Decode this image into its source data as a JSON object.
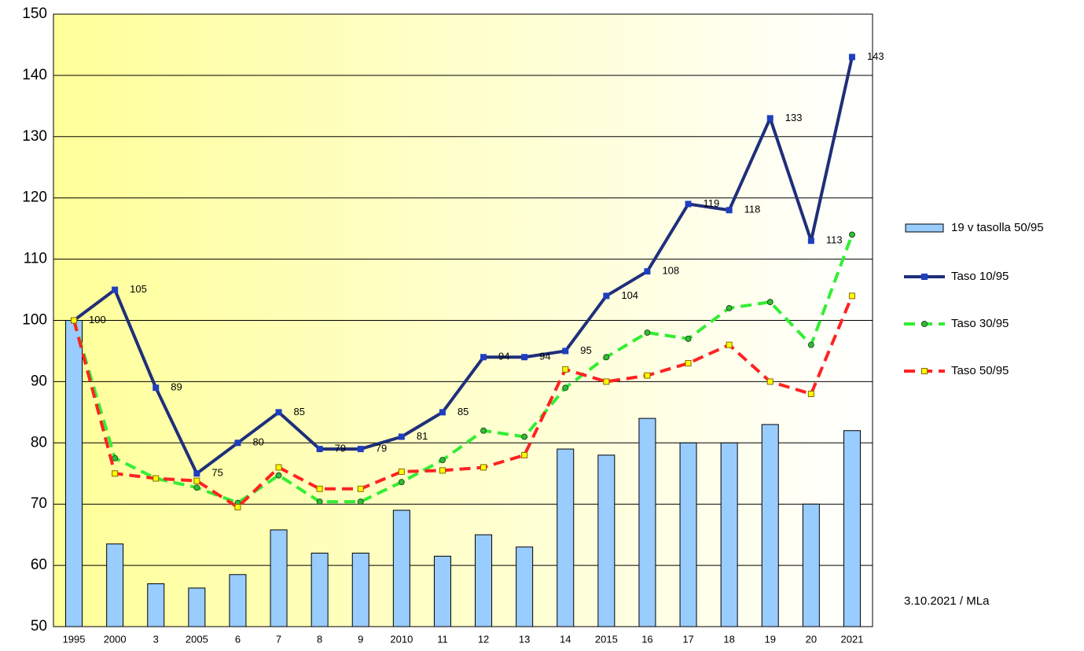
{
  "chart_data": {
    "type": "combo",
    "categories": [
      "1995",
      "2000",
      "3",
      "2005",
      "6",
      "7",
      "8",
      "9",
      "2010",
      "11",
      "12",
      "13",
      "14",
      "2015",
      "16",
      "17",
      "18",
      "19",
      "20",
      "2021"
    ],
    "series": [
      {
        "name": "19 v tasolla 50/95",
        "type": "bar",
        "color": "#99ccff",
        "values": [
          100,
          63.5,
          57,
          56.3,
          58.5,
          65.8,
          62,
          62,
          69,
          61.5,
          65,
          63,
          79,
          78,
          84,
          80,
          80,
          83,
          70,
          82
        ]
      },
      {
        "name": "Taso 10/95",
        "type": "line",
        "color": "#1f2f7a",
        "marker_color": "#1f3fbf",
        "marker": "square",
        "dashed": false,
        "show_labels": true,
        "values": [
          100,
          105,
          89,
          75,
          80,
          85,
          79,
          79,
          81,
          85,
          94,
          94,
          95,
          104,
          108,
          119,
          118,
          133,
          113,
          143
        ]
      },
      {
        "name": "Taso 30/95",
        "type": "line",
        "color": "#33ee33",
        "marker_color": "#33bb33",
        "marker": "circle",
        "dashed": true,
        "values": [
          100,
          77.5,
          74.2,
          72.7,
          70.2,
          74.7,
          70.4,
          70.4,
          73.6,
          77.2,
          82,
          81,
          89,
          94,
          98,
          97,
          102,
          103,
          96,
          114
        ]
      },
      {
        "name": "Taso 50/95",
        "type": "line",
        "color": "#ff2222",
        "marker_color": "#ffff00",
        "marker": "square",
        "dashed": true,
        "values": [
          100,
          75,
          74.2,
          73.8,
          69.5,
          76,
          72.5,
          72.5,
          75.3,
          75.5,
          76,
          78,
          92,
          90,
          91,
          93,
          96,
          90,
          88,
          104
        ]
      }
    ],
    "ylim": [
      50,
      150
    ],
    "yticks": [
      50,
      60,
      70,
      80,
      90,
      100,
      110,
      120,
      130,
      140,
      150
    ],
    "grid": true,
    "legend": "right",
    "annotation": "3.10.2021 / MLa"
  }
}
